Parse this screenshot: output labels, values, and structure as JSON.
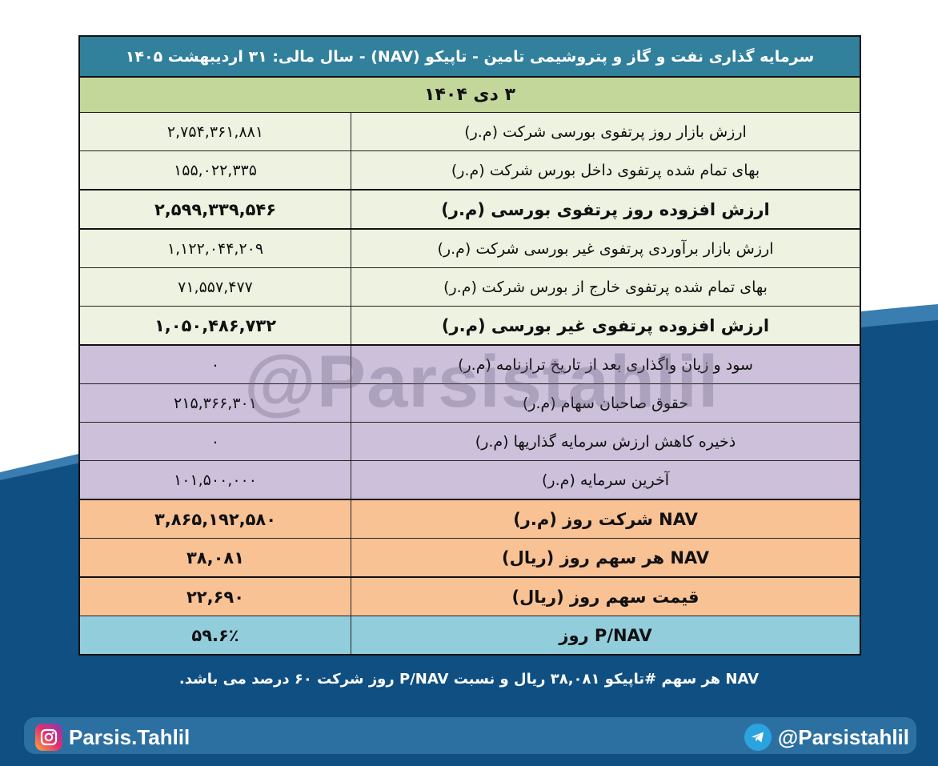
{
  "colors": {
    "title": "#31809c",
    "date": "#c4d79b",
    "stock_rows": "#eef2e1",
    "equity_rows": "#ccc0da",
    "nav_rows": "#f9c295",
    "pnav_row": "#92cddc",
    "background_blue": "#0f4f82"
  },
  "watermark": "@Parsistahlil",
  "table": {
    "title": "سرمایه گذاری نفت و گاز و پتروشیمی تامین - تاپیکو (NAV) - سال مالی: ۳۱ اردیبهشت ۱۴۰۵",
    "date": "۳ دی ۱۴۰۴",
    "rows": [
      {
        "label": "ارزش بازار روز پرتفوی بورسی شرکت (م.ر)",
        "value": "۲,۷۵۴,۳۶۱,۸۸۱"
      },
      {
        "label": "بهای تمام شده پرتفوی داخل بورس شرکت (م.ر)",
        "value": "۱۵۵,۰۲۲,۳۳۵"
      },
      {
        "label": "ارزش افزوده روز پرتفوی بورسی (م.ر)",
        "value": "۲,۵۹۹,۳۳۹,۵۴۶"
      },
      {
        "label": "ارزش بازار برآوردی پرتفوی غیر بورسی شرکت (م.ر)",
        "value": "۱,۱۲۲,۰۴۴,۲۰۹"
      },
      {
        "label": "بهای تمام شده پرتفوی خارج از بورس شرکت (م.ر)",
        "value": "۷۱,۵۵۷,۴۷۷"
      },
      {
        "label": "ارزش افزوده پرتفوی غیر بورسی (م.ر)",
        "value": "۱,۰۵۰,۴۸۶,۷۳۲"
      },
      {
        "label": "سود و زیان واگذاری بعد از تاریخ ترازنامه (م.ر)",
        "value": "۰"
      },
      {
        "label": "حقوق صاحبان سهام (م.ر)",
        "value": "۲۱۵,۳۶۶,۳۰۱"
      },
      {
        "label": "ذخیره کاهش ارزش سرمایه گذاریها (م.ر)",
        "value": "۰"
      },
      {
        "label": "آخرین سرمایه (م.ر)",
        "value": "۱۰۱,۵۰۰,۰۰۰"
      },
      {
        "label": "NAV شرکت روز (م.ر)",
        "value": "۳,۸۶۵,۱۹۲,۵۸۰"
      },
      {
        "label": "NAV هر سهم روز (ریال)",
        "value": "۳۸,۰۸۱"
      },
      {
        "label": "قیمت سهم روز (ریال)",
        "value": "۲۲,۶۹۰"
      },
      {
        "label": "P/NAV روز",
        "value": "۵۹.۶٪"
      }
    ]
  },
  "caption": "NAV هر سهم #تاپیکو ۳۸,۰۸۱ ریال و نسبت P/NAV روز شرکت ۶۰ درصد می باشد.",
  "footer": {
    "instagram": "Parsis.Tahlil",
    "telegram": "@Parsistahlil",
    "instagram_icon": "instagram-icon",
    "telegram_icon": "telegram-icon"
  }
}
